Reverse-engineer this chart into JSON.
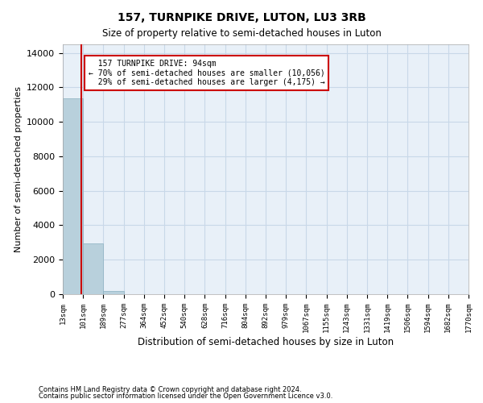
{
  "title": "157, TURNPIKE DRIVE, LUTON, LU3 3RB",
  "subtitle": "Size of property relative to semi-detached houses in Luton",
  "xlabel": "Distribution of semi-detached houses by size in Luton",
  "ylabel": "Number of semi-detached properties",
  "property_size": 94,
  "property_label": "157 TURNPIKE DRIVE: 94sqm",
  "pct_smaller": 70,
  "count_smaller": 10056,
  "pct_larger": 29,
  "count_larger": 4175,
  "bar_color": "#b8d0dc",
  "bar_edge_color": "#8ab0c0",
  "vline_color": "#cc0000",
  "annotation_box_edge": "#cc0000",
  "grid_color": "#c8d8e8",
  "bg_color": "#e8f0f8",
  "bin_edges": [
    13,
    101,
    189,
    277,
    364,
    452,
    540,
    628,
    716,
    804,
    892,
    979,
    1067,
    1155,
    1243,
    1331,
    1419,
    1506,
    1594,
    1682,
    1770
  ],
  "bin_labels": [
    "13sqm",
    "101sqm",
    "189sqm",
    "277sqm",
    "364sqm",
    "452sqm",
    "540sqm",
    "628sqm",
    "716sqm",
    "804sqm",
    "892sqm",
    "979sqm",
    "1067sqm",
    "1155sqm",
    "1243sqm",
    "1331sqm",
    "1419sqm",
    "1506sqm",
    "1594sqm",
    "1682sqm",
    "1770sqm"
  ],
  "counts": [
    11350,
    2950,
    175,
    10,
    3,
    1,
    1,
    0,
    0,
    0,
    0,
    0,
    0,
    0,
    0,
    0,
    0,
    0,
    0,
    0
  ],
  "ylim": [
    0,
    14500
  ],
  "yticks": [
    0,
    2000,
    4000,
    6000,
    8000,
    10000,
    12000,
    14000
  ],
  "footnote1": "Contains HM Land Registry data © Crown copyright and database right 2024.",
  "footnote2": "Contains public sector information licensed under the Open Government Licence v3.0."
}
